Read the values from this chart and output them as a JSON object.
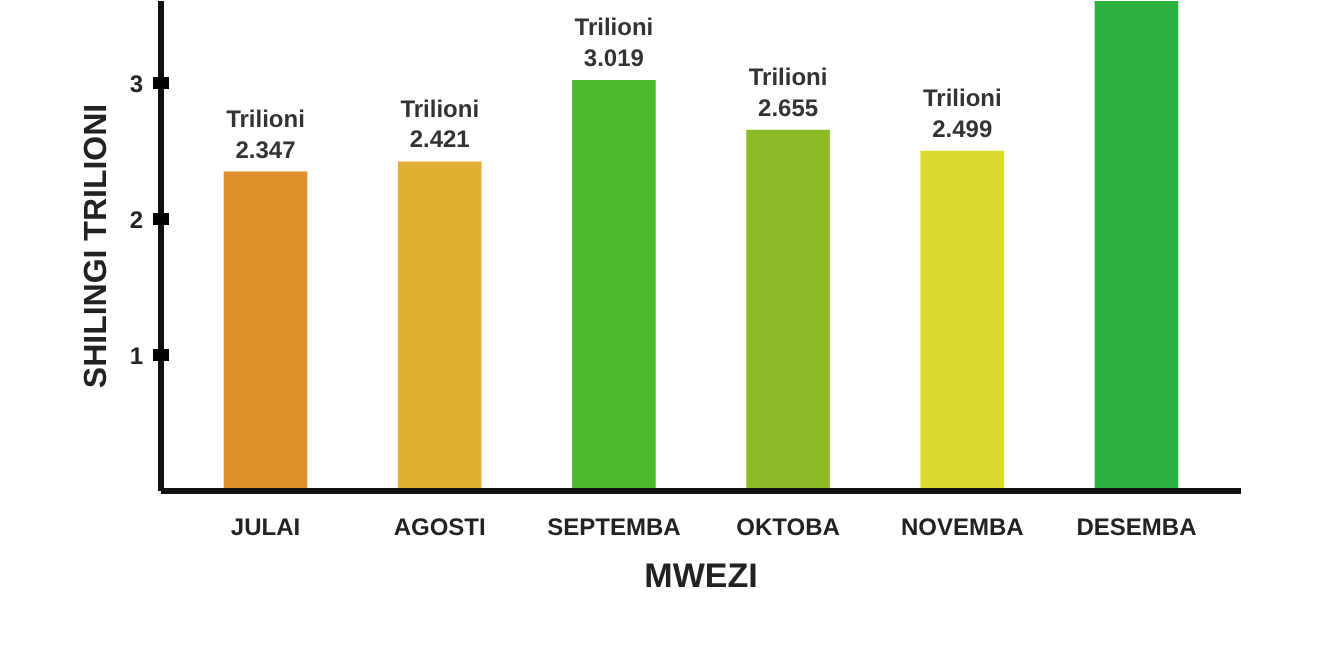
{
  "chart_data": {
    "type": "bar",
    "ylabel": "SHILINGI TRILIONI",
    "xlabel": "MWEZI",
    "categories": [
      "JULAI",
      "AGOSTI",
      "SEPTEMBA",
      "OKTOBA",
      "NOVEMBA",
      "DESEMBA"
    ],
    "values": [
      2.347,
      2.421,
      3.019,
      2.655,
      2.499,
      3.6
    ],
    "colors": [
      "#e0902a",
      "#e0b032",
      "#4cb82c",
      "#8dbb26",
      "#d9d92e",
      "#2eb040"
    ],
    "value_labels": [
      "Trilioni\n2.347",
      "Trilioni\n2.421",
      "Trilioni\n3.019",
      "Trilioni\n2.655",
      "Trilioni\n2.499",
      null
    ],
    "ylim": [
      0,
      3.6
    ],
    "yticks": [
      1,
      2,
      3
    ],
    "grid": false
  }
}
